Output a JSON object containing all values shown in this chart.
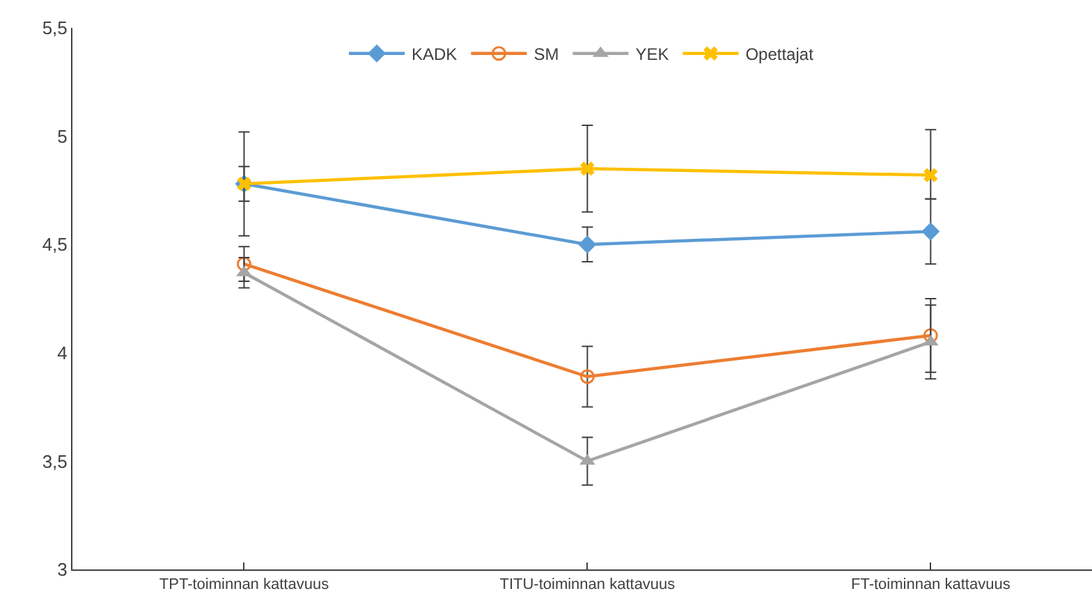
{
  "chart_data": {
    "type": "line",
    "categories": [
      "TPT-toiminnan kattavuus",
      "TITU-toiminnan kattavuus",
      "FT-toiminnan kattavuus"
    ],
    "series": [
      {
        "name": "KADK",
        "color": "#5b9bd5",
        "marker": "diamond",
        "values": [
          4.78,
          4.5,
          4.56
        ],
        "errors": [
          0.08,
          0.08,
          0.15
        ]
      },
      {
        "name": "SM",
        "color": "#ed7d31",
        "marker": "circle",
        "values": [
          4.41,
          3.89,
          4.08
        ],
        "errors": [
          0.08,
          0.14,
          0.17
        ]
      },
      {
        "name": "YEK",
        "color": "#a5a5a5",
        "marker": "triangle",
        "values": [
          4.37,
          3.5,
          4.05
        ],
        "errors": [
          0.07,
          0.11,
          0.17
        ]
      },
      {
        "name": "Opettajat",
        "color": "#ffc000",
        "marker": "cross",
        "values": [
          4.78,
          4.85,
          4.82
        ],
        "errors": [
          0.24,
          0.2,
          [
            4.71,
            5.03
          ]
        ]
      }
    ],
    "ylim": [
      3,
      5.5
    ],
    "yticks": [
      3,
      {
        "value": 3.5,
        "label": "3,5"
      },
      4,
      {
        "value": 4.5,
        "label": "4,5"
      },
      5,
      {
        "value": 5.5,
        "label": "5,5"
      }
    ],
    "grid": false,
    "legend": "top",
    "line_style": "solid"
  }
}
